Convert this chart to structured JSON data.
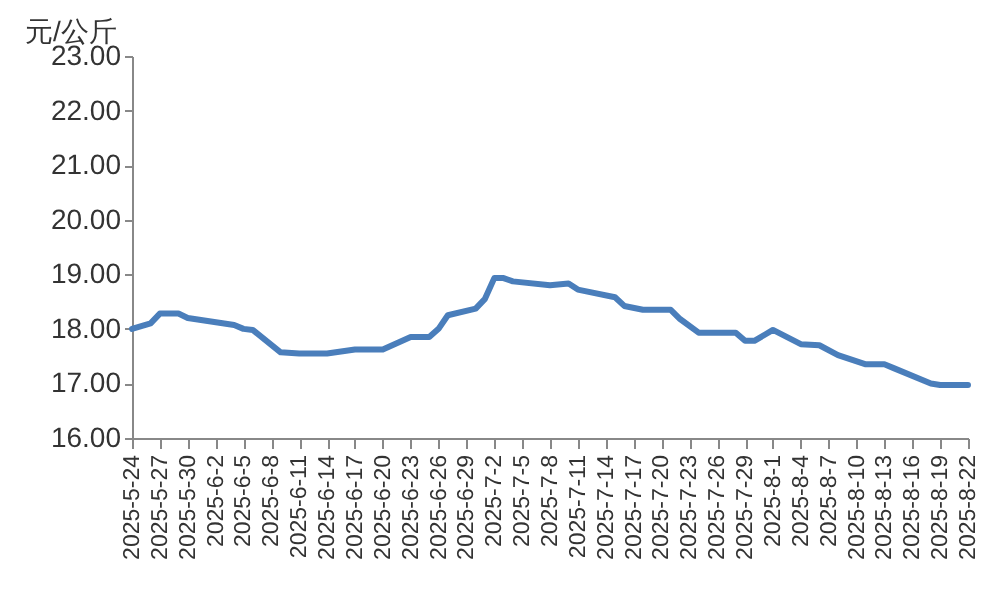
{
  "chart_data": {
    "type": "line",
    "ylabel": "元/公斤",
    "x": [
      "2025-05-24",
      "2025-05-26",
      "2025-05-27",
      "2025-05-29",
      "2025-05-30",
      "2025-06-04",
      "2025-06-05",
      "2025-06-06",
      "2025-06-09",
      "2025-06-11",
      "2025-06-14",
      "2025-06-17",
      "2025-06-20",
      "2025-06-23",
      "2025-06-25",
      "2025-06-26",
      "2025-06-27",
      "2025-06-30",
      "2025-07-01",
      "2025-07-02",
      "2025-07-03",
      "2025-07-04",
      "2025-07-08",
      "2025-07-10",
      "2025-07-11",
      "2025-07-15",
      "2025-07-16",
      "2025-07-18",
      "2025-07-21",
      "2025-07-22",
      "2025-07-24",
      "2025-07-28",
      "2025-07-29",
      "2025-07-30",
      "2025-08-01",
      "2025-08-04",
      "2025-08-06",
      "2025-08-08",
      "2025-08-11",
      "2025-08-13",
      "2025-08-14",
      "2025-08-18",
      "2025-08-19",
      "2025-08-22"
    ],
    "series": [
      {
        "color": "#4a7ebb",
        "values": [
          18.0,
          18.1,
          18.28,
          18.28,
          18.2,
          18.07,
          18.0,
          17.98,
          17.57,
          17.55,
          17.55,
          17.62,
          17.62,
          17.85,
          17.85,
          18.0,
          18.25,
          18.37,
          18.55,
          18.93,
          18.93,
          18.87,
          18.8,
          18.83,
          18.72,
          18.58,
          18.42,
          18.35,
          18.35,
          18.18,
          17.93,
          17.93,
          17.78,
          17.78,
          17.98,
          17.72,
          17.7,
          17.52,
          17.35,
          17.35,
          17.28,
          17.0,
          16.97,
          16.97
        ]
      }
    ],
    "xlim": [
      "2025-05-24",
      "2025-08-22"
    ],
    "xticks": [
      {
        "value": "2025-05-24",
        "label": "2025-5-24"
      },
      {
        "value": "2025-05-27",
        "label": "2025-5-27"
      },
      {
        "value": "2025-05-30",
        "label": "2025-5-30"
      },
      {
        "value": "2025-06-02",
        "label": "2025-6-2"
      },
      {
        "value": "2025-06-05",
        "label": "2025-6-5"
      },
      {
        "value": "2025-06-08",
        "label": "2025-6-8"
      },
      {
        "value": "2025-06-11",
        "label": "2025-6-11"
      },
      {
        "value": "2025-06-14",
        "label": "2025-6-14"
      },
      {
        "value": "2025-06-17",
        "label": "2025-6-17"
      },
      {
        "value": "2025-06-20",
        "label": "2025-6-20"
      },
      {
        "value": "2025-06-23",
        "label": "2025-6-23"
      },
      {
        "value": "2025-06-26",
        "label": "2025-6-26"
      },
      {
        "value": "2025-06-29",
        "label": "2025-6-29"
      },
      {
        "value": "2025-07-02",
        "label": "2025-7-2"
      },
      {
        "value": "2025-07-05",
        "label": "2025-7-5"
      },
      {
        "value": "2025-07-08",
        "label": "2025-7-8"
      },
      {
        "value": "2025-07-11",
        "label": "2025-7-11"
      },
      {
        "value": "2025-07-14",
        "label": "2025-7-14"
      },
      {
        "value": "2025-07-17",
        "label": "2025-7-17"
      },
      {
        "value": "2025-07-20",
        "label": "2025-7-20"
      },
      {
        "value": "2025-07-23",
        "label": "2025-7-23"
      },
      {
        "value": "2025-07-26",
        "label": "2025-7-26"
      },
      {
        "value": "2025-07-29",
        "label": "2025-7-29"
      },
      {
        "value": "2025-08-01",
        "label": "2025-8-1"
      },
      {
        "value": "2025-08-04",
        "label": "2025-8-4"
      },
      {
        "value": "2025-08-07",
        "label": "2025-8-7"
      },
      {
        "value": "2025-08-10",
        "label": "2025-8-10"
      },
      {
        "value": "2025-08-13",
        "label": "2025-8-13"
      },
      {
        "value": "2025-08-16",
        "label": "2025-8-16"
      },
      {
        "value": "2025-08-19",
        "label": "2025-8-19"
      },
      {
        "value": "2025-08-22",
        "label": "2025-8-22"
      }
    ],
    "ylim": [
      16,
      23
    ],
    "yticks": [
      {
        "value": 16,
        "label": "16.00"
      },
      {
        "value": 17,
        "label": "17.00"
      },
      {
        "value": 18,
        "label": "18.00"
      },
      {
        "value": 19,
        "label": "19.00"
      },
      {
        "value": 20,
        "label": "20.00"
      },
      {
        "value": 21,
        "label": "21.00"
      },
      {
        "value": 22,
        "label": "22.00"
      },
      {
        "value": 23,
        "label": "23.00"
      }
    ]
  }
}
